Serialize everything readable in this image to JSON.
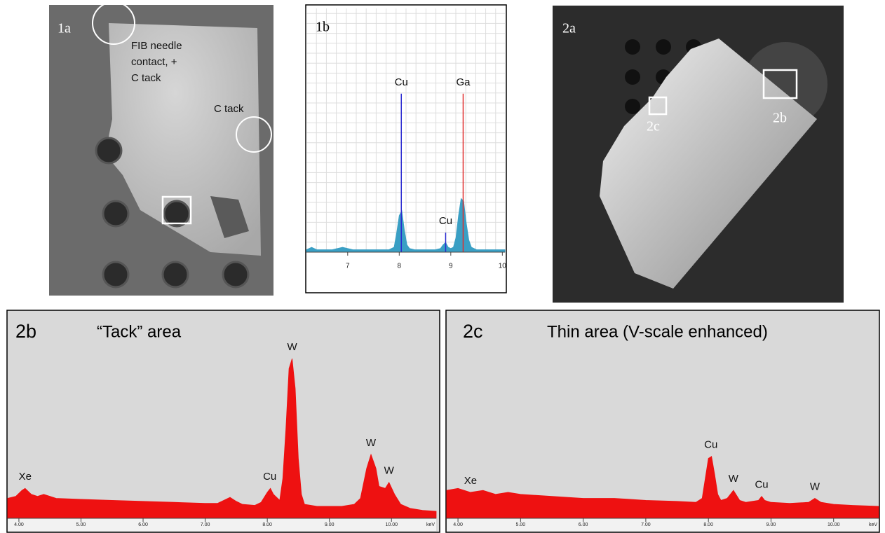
{
  "panel_1a": {
    "label": "1a",
    "annotations": [
      "FIB needle",
      "contact, +",
      "C tack",
      "C tack"
    ]
  },
  "panel_2a": {
    "label": "2a",
    "box_labels": [
      "2b",
      "2c"
    ]
  },
  "chart_data": [
    {
      "type": "area",
      "title": "1b",
      "grid": true,
      "x": [
        6.2,
        6.3,
        6.4,
        6.5,
        6.6,
        6.7,
        6.8,
        6.9,
        7.0,
        7.1,
        7.2,
        7.4,
        7.6,
        7.8,
        7.9,
        7.95,
        8.0,
        8.05,
        8.1,
        8.15,
        8.2,
        8.3,
        8.5,
        8.7,
        8.8,
        8.85,
        8.9,
        8.95,
        9.0,
        9.05,
        9.1,
        9.15,
        9.2,
        9.25,
        9.3,
        9.35,
        9.4,
        9.5,
        9.7,
        9.9,
        10.05
      ],
      "series": [
        {
          "color": "#3a9fc4",
          "values": [
            1,
            2,
            1,
            1,
            1,
            1,
            1.5,
            2,
            1.5,
            1,
            1,
            1,
            1,
            1,
            2,
            8,
            15,
            17,
            9,
            3,
            1.5,
            1,
            1,
            1,
            1.5,
            3,
            4,
            2,
            1.5,
            2,
            6,
            15,
            22,
            21,
            12,
            5,
            2,
            1,
            1,
            1,
            1
          ]
        }
      ],
      "peak_lines": [
        {
          "x": 8.04,
          "value": 65,
          "color": "#2a2ad0"
        },
        {
          "x": 9.24,
          "value": 65,
          "color": "#e03030"
        },
        {
          "x": 8.9,
          "value": 8,
          "color": "#2a2ad0"
        }
      ],
      "annotations": [
        {
          "text": "Cu",
          "x": 8.04
        },
        {
          "text": "Ga",
          "x": 9.24
        },
        {
          "text": "Cu",
          "x": 8.9
        }
      ],
      "xlim": [
        6.2,
        10.05
      ],
      "xticks": [
        7,
        8,
        9,
        10
      ],
      "ylim": [
        0,
        100
      ]
    },
    {
      "type": "area",
      "title": "2b",
      "subtitle": "“Tack” area",
      "x_label": "keV",
      "x": [
        3.82,
        3.95,
        4.05,
        4.1,
        4.2,
        4.3,
        4.4,
        4.5,
        4.6,
        5.0,
        5.5,
        6.0,
        6.5,
        7.0,
        7.2,
        7.3,
        7.4,
        7.5,
        7.6,
        7.8,
        7.9,
        8.0,
        8.05,
        8.1,
        8.2,
        8.25,
        8.3,
        8.35,
        8.4,
        8.45,
        8.5,
        8.55,
        8.6,
        8.8,
        9.0,
        9.2,
        9.4,
        9.5,
        9.6,
        9.67,
        9.75,
        9.8,
        9.9,
        9.96,
        10.05,
        10.15,
        10.3,
        10.5,
        10.72
      ],
      "series": [
        {
          "color": "#ee1111",
          "values": [
            10,
            11,
            14,
            15,
            12,
            11,
            12,
            11,
            10,
            9.5,
            9,
            8.5,
            8,
            7.5,
            7.5,
            9,
            10.5,
            8.5,
            7,
            6.5,
            8,
            13,
            15,
            12,
            9,
            20,
            45,
            75,
            80,
            65,
            30,
            12,
            7,
            6,
            6,
            6,
            7,
            10,
            25,
            32,
            25,
            16,
            15,
            18,
            12,
            7,
            5,
            4,
            3.5
          ]
        }
      ],
      "annotations": [
        {
          "text": "Xe",
          "x": 4.1
        },
        {
          "text": "Cu",
          "x": 8.04
        },
        {
          "text": "W",
          "x": 8.4
        },
        {
          "text": "W",
          "x": 9.67
        },
        {
          "text": "W",
          "x": 9.96
        }
      ],
      "xlim": [
        3.82,
        10.72
      ],
      "xticks": [
        {
          "value": 4,
          "label": "4.00"
        },
        {
          "value": 5,
          "label": "5.00"
        },
        {
          "value": 6,
          "label": "6.00"
        },
        {
          "value": 7,
          "label": "7.00"
        },
        {
          "value": 8,
          "label": "8.00"
        },
        {
          "value": 9,
          "label": "9.00"
        },
        {
          "value": 10,
          "label": "10.00"
        }
      ],
      "ylim": [
        0,
        100
      ]
    },
    {
      "type": "area",
      "title": "2c",
      "subtitle": "Thin area (V-scale enhanced)",
      "x_label": "keV",
      "x": [
        3.82,
        4.0,
        4.2,
        4.4,
        4.6,
        4.8,
        5.0,
        5.5,
        6.0,
        6.5,
        7.0,
        7.5,
        7.8,
        7.9,
        7.95,
        8.0,
        8.05,
        8.1,
        8.15,
        8.2,
        8.3,
        8.4,
        8.5,
        8.6,
        8.8,
        8.85,
        8.9,
        9.0,
        9.3,
        9.6,
        9.7,
        9.8,
        10.0,
        10.3,
        10.72
      ],
      "series": [
        {
          "color": "#ee1111",
          "values": [
            14,
            15,
            13,
            14,
            12,
            13,
            12,
            11,
            10,
            10,
            9,
            8.5,
            8,
            10,
            20,
            30,
            31,
            22,
            12,
            9,
            10,
            14,
            9,
            8,
            9,
            11,
            9,
            8,
            7.5,
            8,
            10,
            8,
            7,
            6.5,
            6
          ]
        }
      ],
      "annotations": [
        {
          "text": "Xe",
          "x": 4.2
        },
        {
          "text": "Cu",
          "x": 8.04
        },
        {
          "text": "W",
          "x": 8.4
        },
        {
          "text": "Cu",
          "x": 8.85
        },
        {
          "text": "W",
          "x": 9.7
        }
      ],
      "xlim": [
        3.82,
        10.72
      ],
      "xticks": [
        {
          "value": 4,
          "label": "4.00"
        },
        {
          "value": 5,
          "label": "5.00"
        },
        {
          "value": 6,
          "label": "6.00"
        },
        {
          "value": 7,
          "label": "7.00"
        },
        {
          "value": 8,
          "label": "8.00"
        },
        {
          "value": 9,
          "label": "9.00"
        },
        {
          "value": 10,
          "label": "10.00"
        }
      ],
      "ylim": [
        0,
        100
      ]
    }
  ]
}
